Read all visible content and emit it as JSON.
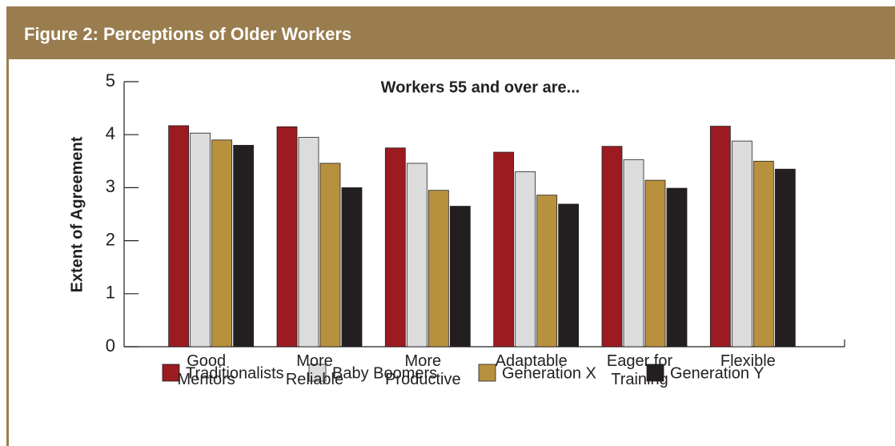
{
  "header": {
    "title": "Figure 2: Perceptions of Older Workers"
  },
  "chart_data": {
    "type": "bar",
    "title": "Workers 55 and over are...",
    "y_label": "Extent of Agreement",
    "categories": [
      "Good Mentors",
      "More Reliable",
      "More Productive",
      "Adaptable",
      "Eager for Training",
      "Flexible"
    ],
    "series": [
      {
        "name": "Traditionalists",
        "color": "#9b1b20",
        "values": [
          4.17,
          4.15,
          3.75,
          3.67,
          3.78,
          4.16
        ]
      },
      {
        "name": "Baby Boomers",
        "color": "#dcdcdc",
        "values": [
          4.03,
          3.95,
          3.46,
          3.3,
          3.53,
          3.88
        ]
      },
      {
        "name": "Generation X",
        "color": "#b8913f",
        "values": [
          3.9,
          3.46,
          2.95,
          2.86,
          3.14,
          3.5
        ]
      },
      {
        "name": "Generation Y",
        "color": "#231f20",
        "values": [
          3.8,
          3.0,
          2.65,
          2.69,
          2.99,
          3.35
        ]
      }
    ],
    "ylim": [
      0,
      5
    ],
    "yticks": [
      0,
      1,
      2,
      3,
      4,
      5
    ],
    "grid": false,
    "legend": "bottom"
  }
}
